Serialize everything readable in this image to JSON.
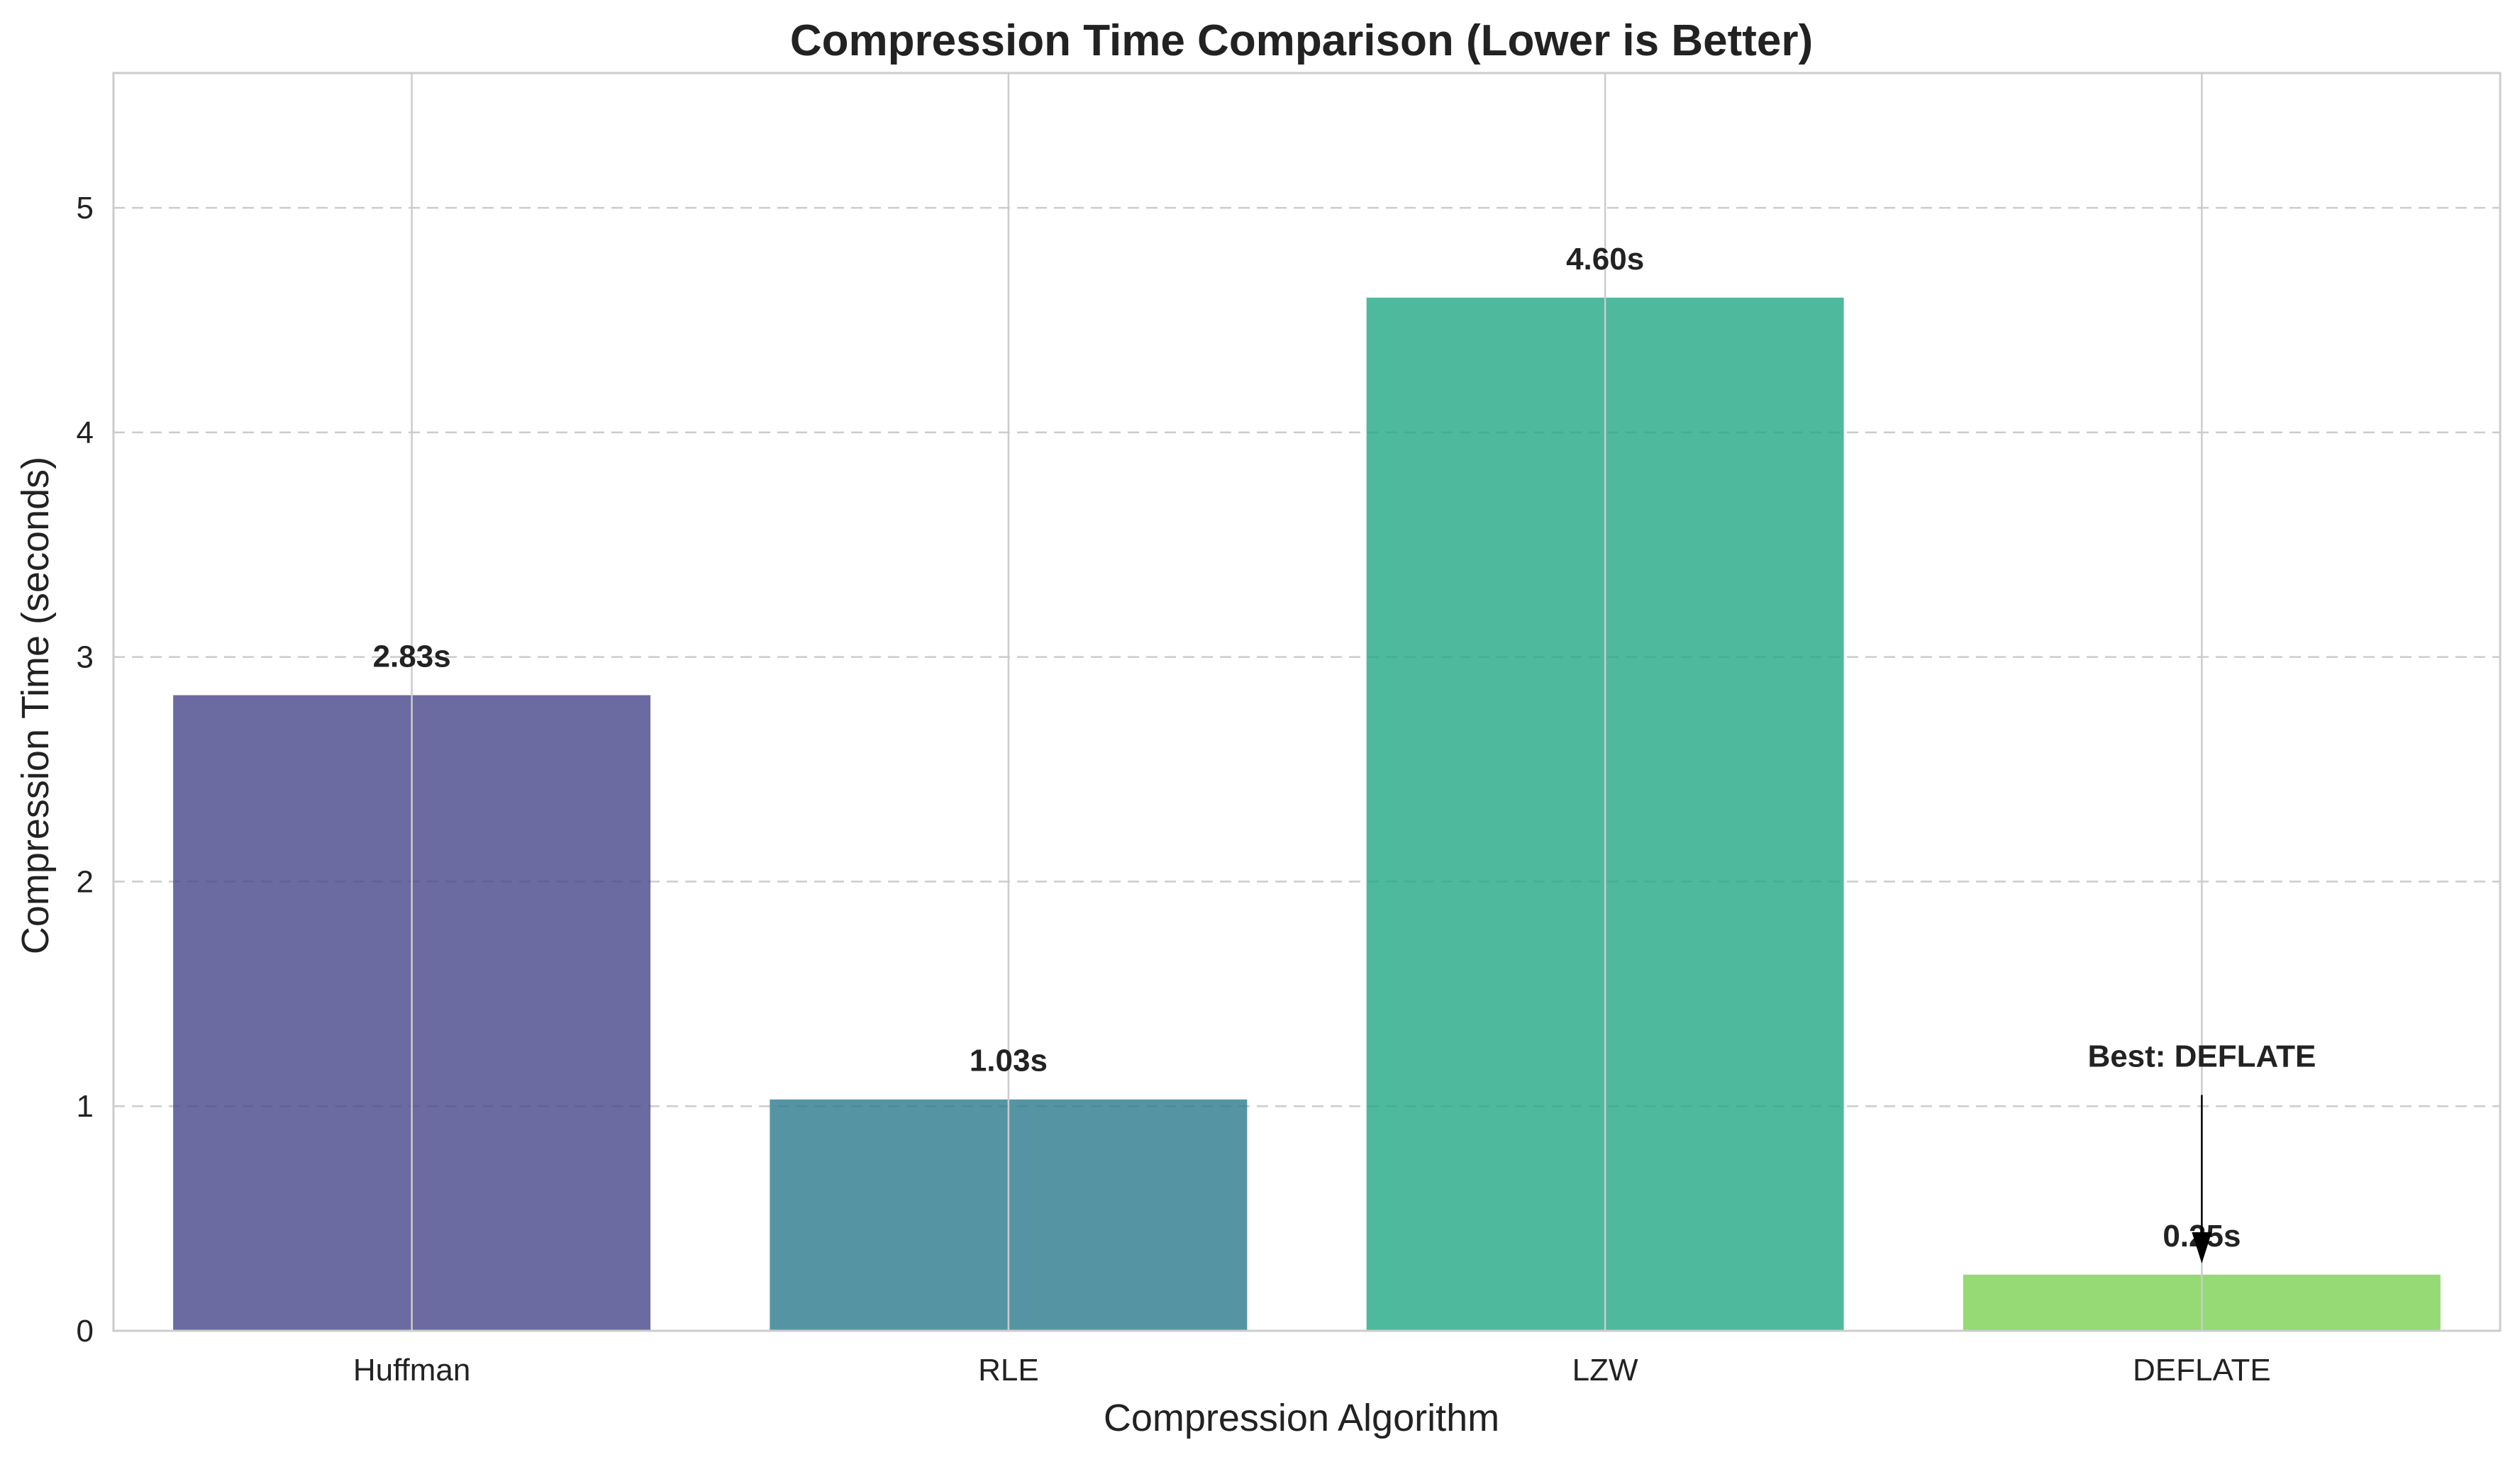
{
  "chart_data": {
    "type": "bar",
    "title": "Compression Time Comparison (Lower is Better)",
    "xlabel": "Compression Algorithm",
    "ylabel": "Compression Time (seconds)",
    "categories": [
      "Huffman",
      "RLE",
      "LZW",
      "DEFLATE"
    ],
    "values": [
      2.83,
      1.03,
      4.6,
      0.25
    ],
    "value_labels": [
      "2.83s",
      "1.03s",
      "4.60s",
      "0.25s"
    ],
    "colors": [
      "#46468a",
      "#2b7a8c",
      "#22a884",
      "#7ad151"
    ],
    "bar_opacity": 0.8,
    "ylim": [
      0,
      5.6
    ],
    "yticks": [
      0,
      1,
      2,
      3,
      4,
      5
    ],
    "ytick_labels": [
      "0",
      "1",
      "2",
      "3",
      "4",
      "5"
    ],
    "grid": {
      "x": "solid",
      "y": "dashed"
    },
    "annotation": {
      "text": "Best: DEFLATE",
      "target_category": "DEFLATE",
      "text_y": 1.05,
      "arrow_tip_y": 0.3
    }
  }
}
